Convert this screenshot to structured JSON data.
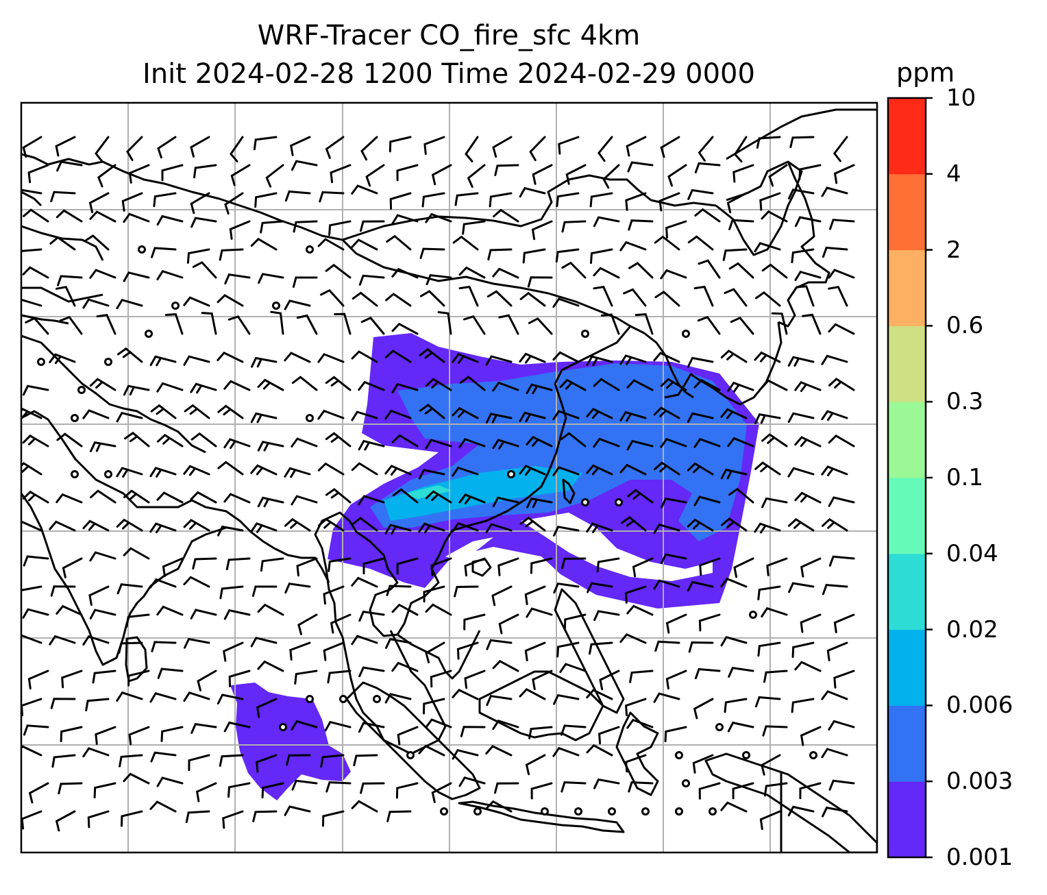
{
  "title": {
    "line1": "WRF-Tracer CO_fire_sfc 4km",
    "line2": "Init 2024-02-28 1200 Time 2024-02-29 0000"
  },
  "colorbar": {
    "unit": "ppm",
    "levels": [
      "0.001",
      "0.003",
      "0.006",
      "0.02",
      "0.04",
      "0.1",
      "0.3",
      "0.6",
      "2",
      "4",
      "10"
    ],
    "colors": [
      "#6428f7",
      "#3373f3",
      "#03b1ec",
      "#2edcd6",
      "#66fab8",
      "#9af896",
      "#cde084",
      "#fdb062",
      "#fe7035",
      "#ff2b17"
    ]
  },
  "map": {
    "field": "CO_fire_sfc",
    "coastline_color": "#000000",
    "grid_color": "#b0b0b0",
    "wind_barbs": true,
    "calm_markers": true
  }
}
